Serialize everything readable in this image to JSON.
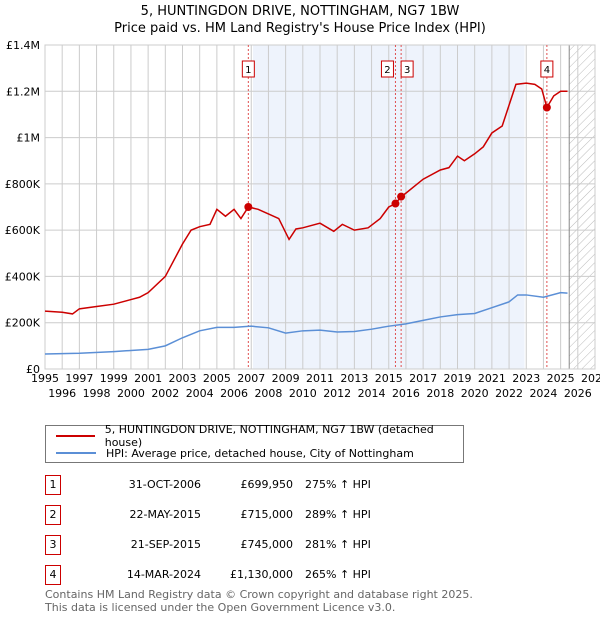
{
  "title": "5, HUNTINGDON DRIVE, NOTTINGHAM, NG7 1BW",
  "subtitle": "Price paid vs. HM Land Registry's House Price Index (HPI)",
  "chart_data": {
    "type": "line",
    "xlim": [
      1995,
      2027
    ],
    "ylim": [
      0,
      1400000
    ],
    "x_ticks": [
      "1995",
      "1996",
      "1997",
      "1998",
      "1999",
      "2000",
      "2001",
      "2002",
      "2003",
      "2004",
      "2005",
      "2006",
      "2007",
      "2008",
      "2009",
      "2010",
      "2011",
      "2012",
      "2013",
      "2014",
      "2015",
      "2016",
      "2017",
      "2018",
      "2019",
      "2020",
      "2021",
      "2022",
      "2023",
      "2024",
      "2025",
      "2026",
      "2027"
    ],
    "y_ticks": [
      {
        "v": 0,
        "label": "£0"
      },
      {
        "v": 200000,
        "label": "£200K"
      },
      {
        "v": 400000,
        "label": "£400K"
      },
      {
        "v": 600000,
        "label": "£600K"
      },
      {
        "v": 800000,
        "label": "£800K"
      },
      {
        "v": 1000000,
        "label": "£1M"
      },
      {
        "v": 1200000,
        "label": "£1.2M"
      },
      {
        "v": 1400000,
        "label": "£1.4M"
      }
    ],
    "grid": true,
    "forecast_from": 2025.5,
    "series": [
      {
        "name": "5, HUNTINGDON DRIVE, NOTTINGHAM, NG7 1BW (detached house)",
        "color": "#cc0000",
        "x": [
          1995,
          1996,
          1996.6,
          1997,
          1998,
          1999,
          2000,
          2000.5,
          2001,
          2002,
          2003,
          2003.5,
          2004,
          2004.6,
          2005,
          2005.5,
          2006,
          2006.4,
          2006.83,
          2007.4,
          2008,
          2008.6,
          2009.2,
          2009.6,
          2010,
          2011,
          2011.8,
          2012.3,
          2013,
          2013.8,
          2014.5,
          2015,
          2015.4,
          2015.72,
          2016,
          2017,
          2018,
          2018.5,
          2019,
          2019.4,
          2020,
          2020.5,
          2021,
          2021.6,
          2022,
          2022.4,
          2023,
          2023.5,
          2023.9,
          2024.2,
          2024.6,
          2025,
          2025.4
        ],
        "y": [
          250000,
          245000,
          238000,
          260000,
          270000,
          280000,
          300000,
          310000,
          330000,
          400000,
          540000,
          600000,
          615000,
          625000,
          690000,
          660000,
          690000,
          650000,
          699950,
          690000,
          670000,
          650000,
          560000,
          605000,
          610000,
          630000,
          595000,
          625000,
          600000,
          610000,
          650000,
          700000,
          715000,
          745000,
          760000,
          820000,
          860000,
          870000,
          920000,
          900000,
          930000,
          960000,
          1020000,
          1050000,
          1140000,
          1230000,
          1235000,
          1230000,
          1210000,
          1130000,
          1180000,
          1200000,
          1200000
        ]
      },
      {
        "name": "HPI: Average price, detached house, City of Nottingham",
        "color": "#5b8fd6",
        "x": [
          1995,
          1997,
          1999,
          2001,
          2002,
          2003,
          2004,
          2005,
          2006,
          2007,
          2008,
          2009,
          2010,
          2011,
          2012,
          2013,
          2014,
          2015,
          2016,
          2017,
          2018,
          2019,
          2020,
          2021,
          2022,
          2022.5,
          2023,
          2024,
          2025,
          2025.4
        ],
        "y": [
          65000,
          68000,
          75000,
          85000,
          100000,
          135000,
          165000,
          180000,
          180000,
          185000,
          178000,
          155000,
          165000,
          168000,
          160000,
          162000,
          172000,
          185000,
          195000,
          210000,
          225000,
          235000,
          240000,
          265000,
          290000,
          320000,
          320000,
          310000,
          330000,
          328000
        ]
      }
    ],
    "sales": [
      {
        "label": "1",
        "x": 2006.83,
        "y": 699950,
        "date": "31-OCT-2006",
        "price": "£699,950",
        "hpi": "275% ↑ HPI"
      },
      {
        "label": "2",
        "x": 2015.39,
        "y": 715000,
        "date": "22-MAY-2015",
        "price": "£715,000",
        "hpi": "289% ↑ HPI"
      },
      {
        "label": "3",
        "x": 2015.72,
        "y": 745000,
        "date": "21-SEP-2015",
        "price": "£745,000",
        "hpi": "281% ↑ HPI"
      },
      {
        "label": "4",
        "x": 2024.2,
        "y": 1130000,
        "date": "14-MAR-2024",
        "price": "£1,130,000",
        "hpi": "265% ↑ HPI"
      }
    ]
  },
  "legend": {
    "red": "5, HUNTINGDON DRIVE, NOTTINGHAM, NG7 1BW (detached house)",
    "blue": "HPI: Average price, detached house, City of Nottingham"
  },
  "footer": {
    "line1": "Contains HM Land Registry data © Crown copyright and database right 2025.",
    "line2": "This data is licensed under the Open Government Licence v3.0."
  }
}
